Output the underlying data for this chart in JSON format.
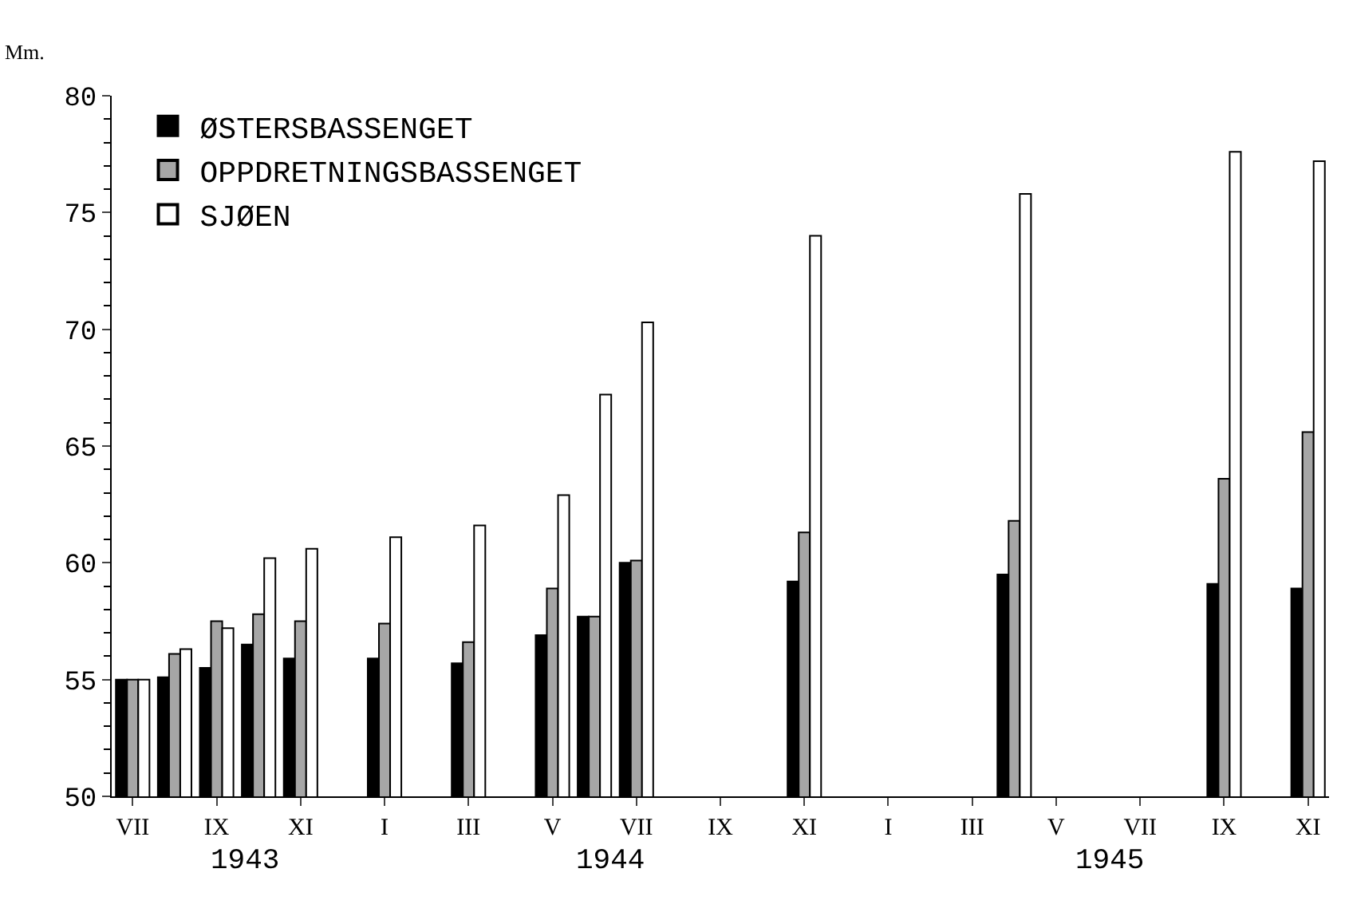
{
  "chart_data": {
    "type": "bar",
    "ylabel": "Mm.",
    "categories": [
      "VII",
      null,
      "IX",
      null,
      "XI",
      null,
      "I",
      null,
      "III",
      null,
      "V",
      null,
      "VII",
      null,
      "IX",
      null,
      "XI",
      null,
      "I",
      null,
      "III",
      null,
      "V",
      null,
      "VII",
      null,
      "IX",
      null,
      "XI"
    ],
    "series": [
      {
        "name": "ØSTERSBASSENGET",
        "color": "#000000",
        "values": [
          55.0,
          55.1,
          55.5,
          56.5,
          55.9,
          null,
          55.9,
          null,
          55.7,
          null,
          56.9,
          57.7,
          60.0,
          null,
          null,
          null,
          59.2,
          null,
          null,
          null,
          null,
          59.5,
          null,
          null,
          null,
          null,
          59.1,
          null,
          58.9
        ]
      },
      {
        "name": "OPPDRETNINGSBASSENGET",
        "color": "#a6a6a6",
        "values": [
          55.0,
          56.1,
          57.5,
          57.8,
          57.5,
          null,
          57.4,
          null,
          56.6,
          null,
          58.9,
          57.7,
          60.1,
          null,
          null,
          null,
          61.3,
          null,
          null,
          null,
          null,
          61.8,
          null,
          null,
          null,
          null,
          63.6,
          null,
          65.6
        ]
      },
      {
        "name": "SJØEN",
        "color": "#ffffff",
        "values": [
          55.0,
          56.3,
          57.2,
          60.2,
          60.6,
          null,
          61.1,
          null,
          61.6,
          null,
          62.9,
          67.2,
          70.3,
          null,
          null,
          null,
          74.0,
          null,
          null,
          null,
          null,
          75.8,
          null,
          null,
          null,
          null,
          77.6,
          null,
          77.2
        ]
      }
    ],
    "ylim": [
      50,
      80
    ],
    "yticks": [
      50,
      55,
      60,
      65,
      70,
      75,
      80
    ],
    "annotations": [
      "1943",
      "1944",
      "1945"
    ],
    "legend": "top left"
  }
}
